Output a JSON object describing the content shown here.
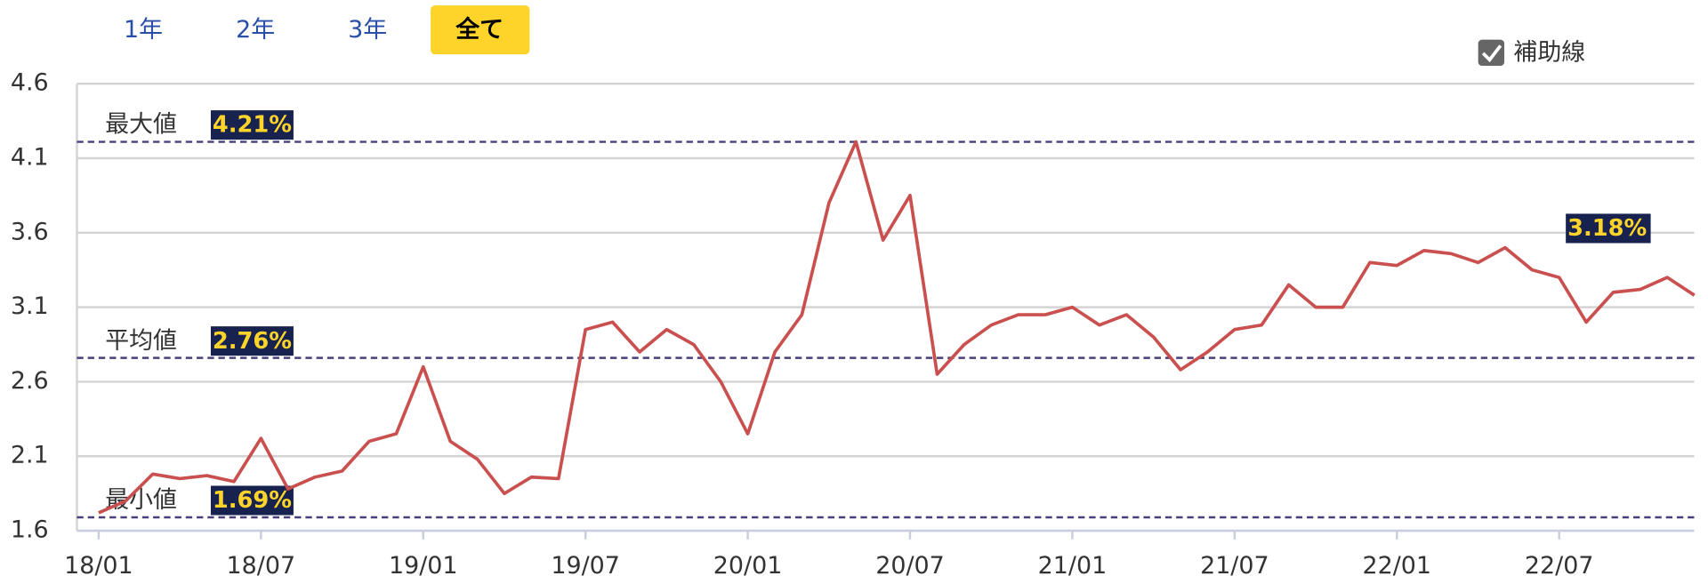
{
  "ui": {
    "range_buttons": [
      "1年",
      "2年",
      "3年",
      "全て"
    ],
    "active_button": 3,
    "checkbox_label": "補助線",
    "checkbox_checked": true
  },
  "chart_data": {
    "type": "line",
    "categories": [
      "18/01",
      null,
      null,
      null,
      null,
      null,
      "18/07",
      null,
      null,
      null,
      null,
      null,
      "19/01",
      null,
      null,
      null,
      null,
      null,
      "19/07",
      null,
      null,
      null,
      null,
      null,
      "20/01",
      null,
      null,
      null,
      null,
      null,
      "20/07",
      null,
      null,
      null,
      null,
      null,
      "21/01",
      null,
      null,
      null,
      null,
      null,
      "21/07",
      null,
      null,
      null,
      null,
      null,
      "22/01",
      null,
      null,
      null,
      null,
      null,
      "22/07",
      null,
      null,
      null,
      null,
      null
    ],
    "series": [
      {
        "color": "#c9504f",
        "values": [
          1.72,
          1.8,
          1.98,
          1.95,
          1.97,
          1.93,
          2.22,
          1.88,
          1.96,
          2.0,
          2.2,
          2.25,
          2.7,
          2.2,
          2.08,
          1.85,
          1.96,
          1.95,
          2.95,
          3.0,
          2.8,
          2.95,
          2.85,
          2.6,
          2.25,
          2.8,
          3.05,
          3.8,
          4.21,
          3.55,
          3.85,
          2.65,
          2.85,
          2.98,
          3.05,
          3.05,
          3.1,
          2.98,
          3.05,
          2.9,
          2.68,
          2.8,
          2.95,
          2.98,
          3.25,
          3.1,
          3.1,
          3.4,
          3.38,
          3.48,
          3.46,
          3.4,
          3.5,
          3.35,
          3.3,
          3.0,
          3.2,
          3.22,
          3.3,
          3.18
        ],
        "value_labels": [
          null,
          null,
          null,
          null,
          null,
          null,
          null,
          null,
          null,
          null,
          null,
          null,
          null,
          null,
          null,
          null,
          null,
          null,
          null,
          null,
          null,
          null,
          null,
          null,
          null,
          null,
          null,
          null,
          null,
          null,
          null,
          null,
          null,
          null,
          null,
          null,
          null,
          null,
          null,
          null,
          null,
          null,
          null,
          null,
          null,
          null,
          null,
          null,
          null,
          null,
          null,
          null,
          null,
          null,
          null,
          null,
          null,
          null,
          null,
          "3.18%"
        ]
      }
    ],
    "reference_lines": [
      {
        "label": "最大値",
        "value": 4.21,
        "value_label": "4.21%"
      },
      {
        "label": "平均値",
        "value": 2.76,
        "value_label": "2.76%"
      },
      {
        "label": "最小値",
        "value": 1.69,
        "value_label": "1.69%"
      }
    ],
    "ylim": [
      1.6,
      4.6
    ],
    "yticks": [
      1.6,
      2.1,
      2.6,
      3.1,
      3.6,
      4.1,
      4.6
    ],
    "grid": true
  }
}
